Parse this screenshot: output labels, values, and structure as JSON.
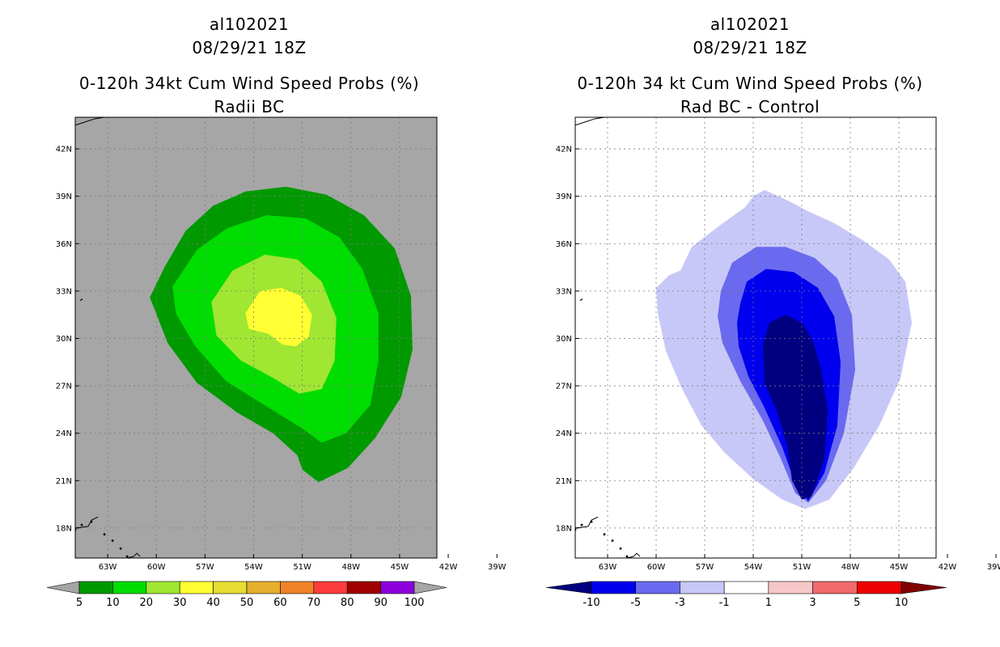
{
  "chart_data": [
    {
      "type": "filled-contour-map",
      "title_lines": [
        "al102021",
        "08/29/21 18Z",
        "0-120h 34kt Cum Wind Speed Probs (%)",
        "Radii BC"
      ],
      "x_ticks": [
        "63W",
        "60W",
        "57W",
        "54W",
        "51W",
        "48W",
        "45W",
        "42W",
        "39W"
      ],
      "y_ticks": [
        "18N",
        "21N",
        "24N",
        "27N",
        "30N",
        "33N",
        "36N",
        "39N",
        "42N"
      ],
      "xlim": [
        -65.0,
        -42.7
      ],
      "ylim": [
        16.1,
        44.0
      ],
      "grid": true,
      "background_color": "#a6a6a6",
      "colorbar": {
        "labels": [
          "5",
          "10",
          "20",
          "30",
          "40",
          "50",
          "60",
          "70",
          "80",
          "90",
          "100"
        ],
        "colors": [
          "#009900",
          "#00dd00",
          "#a0e632",
          "#ffff33",
          "#e6dc32",
          "#e6af2d",
          "#f08228",
          "#fa3c3c",
          "#a00000",
          "#8c00dc"
        ],
        "low_color": "#a6a6a6",
        "high_color": "#a6a6a6"
      },
      "contours": [
        {
          "level": "5-10",
          "color": "#009900",
          "points": [
            [
              -59.5,
              34.5
            ],
            [
              -58.2,
              36.8
            ],
            [
              -56.5,
              38.4
            ],
            [
              -54.5,
              39.3
            ],
            [
              -52.0,
              39.6
            ],
            [
              -49.5,
              39.1
            ],
            [
              -47.2,
              37.8
            ],
            [
              -45.3,
              35.7
            ],
            [
              -44.3,
              32.7
            ],
            [
              -44.2,
              29.3
            ],
            [
              -44.9,
              26.3
            ],
            [
              -46.5,
              23.7
            ],
            [
              -48.2,
              21.8
            ],
            [
              -50.0,
              20.9
            ],
            [
              -51.0,
              21.7
            ],
            [
              -51.3,
              22.6
            ],
            [
              -52.8,
              24.0
            ],
            [
              -55.0,
              25.3
            ],
            [
              -57.5,
              27.2
            ],
            [
              -59.3,
              29.7
            ],
            [
              -60.4,
              32.6
            ]
          ]
        },
        {
          "level": "10-20",
          "color": "#00dd00",
          "points": [
            [
              -59.0,
              33.3
            ],
            [
              -57.5,
              35.6
            ],
            [
              -55.6,
              37.0
            ],
            [
              -53.2,
              37.8
            ],
            [
              -50.8,
              37.6
            ],
            [
              -48.7,
              36.4
            ],
            [
              -47.3,
              34.4
            ],
            [
              -46.3,
              31.6
            ],
            [
              -46.3,
              28.6
            ],
            [
              -46.8,
              25.8
            ],
            [
              -48.3,
              24.0
            ],
            [
              -49.8,
              23.4
            ],
            [
              -51.0,
              24.3
            ],
            [
              -53.2,
              25.7
            ],
            [
              -55.7,
              27.3
            ],
            [
              -57.6,
              29.5
            ],
            [
              -58.8,
              31.6
            ]
          ]
        },
        {
          "level": "20-30",
          "color": "#a0e632",
          "points": [
            [
              -56.6,
              32.3
            ],
            [
              -55.3,
              34.3
            ],
            [
              -53.3,
              35.3
            ],
            [
              -51.3,
              35.0
            ],
            [
              -49.8,
              33.6
            ],
            [
              -48.9,
              31.3
            ],
            [
              -49.0,
              28.6
            ],
            [
              -49.8,
              26.8
            ],
            [
              -51.2,
              26.5
            ],
            [
              -52.8,
              27.5
            ],
            [
              -54.8,
              28.6
            ],
            [
              -56.3,
              30.2
            ]
          ]
        },
        {
          "level": "30-40",
          "color": "#ffff33",
          "points": [
            [
              -54.5,
              31.6
            ],
            [
              -53.6,
              33.0
            ],
            [
              -52.3,
              33.2
            ],
            [
              -51.1,
              32.7
            ],
            [
              -50.4,
              31.5
            ],
            [
              -50.6,
              30.1
            ],
            [
              -51.4,
              29.5
            ],
            [
              -52.2,
              29.6
            ],
            [
              -53.1,
              30.3
            ],
            [
              -54.3,
              30.6
            ]
          ]
        }
      ],
      "coastlines": [
        "northwest-corner",
        "bermuda",
        "lesser-antilles"
      ]
    },
    {
      "type": "filled-contour-map",
      "title_lines": [
        "al102021",
        "08/29/21 18Z",
        "0-120h 34 kt Cum Wind Speed Probs (%)",
        "Rad BC - Control"
      ],
      "x_ticks": [
        "63W",
        "60W",
        "57W",
        "54W",
        "51W",
        "48W",
        "45W",
        "42W",
        "39W"
      ],
      "y_ticks": [
        "18N",
        "21N",
        "24N",
        "27N",
        "30N",
        "33N",
        "36N",
        "39N",
        "42N"
      ],
      "xlim": [
        -65.0,
        -42.7
      ],
      "ylim": [
        16.1,
        44.0
      ],
      "grid": true,
      "background_color": "#ffffff",
      "colorbar": {
        "labels": [
          "-10",
          "-5",
          "-3",
          "-1",
          "1",
          "3",
          "5",
          "10"
        ],
        "colors": [
          "#0000ee",
          "#6a6af0",
          "#c8c8f8",
          "#ffffff",
          "#f8c8c8",
          "#f06a6a",
          "#ee0000"
        ],
        "low_color": "#000080",
        "high_color": "#800000"
      },
      "contours": [
        {
          "level": "-3 to -1",
          "color": "#c8c8f8",
          "points": [
            [
              -58.5,
              34.3
            ],
            [
              -57.8,
              35.8
            ],
            [
              -56.0,
              37.2
            ],
            [
              -54.5,
              38.3
            ],
            [
              -54.0,
              39.0
            ],
            [
              -53.3,
              39.4
            ],
            [
              -52.0,
              38.8
            ],
            [
              -50.5,
              38.0
            ],
            [
              -49.0,
              37.3
            ],
            [
              -47.2,
              36.2
            ],
            [
              -45.6,
              35.0
            ],
            [
              -44.6,
              33.6
            ],
            [
              -44.2,
              31.0
            ],
            [
              -44.9,
              27.5
            ],
            [
              -46.2,
              24.5
            ],
            [
              -47.8,
              21.8
            ],
            [
              -49.3,
              19.8
            ],
            [
              -50.8,
              19.2
            ],
            [
              -52.2,
              19.8
            ],
            [
              -54.0,
              21.1
            ],
            [
              -55.8,
              22.8
            ],
            [
              -57.2,
              24.5
            ],
            [
              -58.4,
              26.8
            ],
            [
              -59.4,
              29.2
            ],
            [
              -59.9,
              31.6
            ],
            [
              -60.0,
              33.2
            ],
            [
              -59.2,
              34.0
            ]
          ]
        },
        {
          "level": "-5 to -3",
          "color": "#6a6af0",
          "points": [
            [
              -56.0,
              33.0
            ],
            [
              -55.3,
              34.8
            ],
            [
              -53.8,
              35.8
            ],
            [
              -52.0,
              35.8
            ],
            [
              -50.2,
              35.1
            ],
            [
              -48.8,
              33.8
            ],
            [
              -47.9,
              31.5
            ],
            [
              -47.7,
              28.0
            ],
            [
              -48.4,
              24.0
            ],
            [
              -49.5,
              21.0
            ],
            [
              -50.6,
              19.6
            ],
            [
              -51.4,
              20.2
            ],
            [
              -52.3,
              22.4
            ],
            [
              -53.4,
              24.8
            ],
            [
              -54.8,
              27.3
            ],
            [
              -55.9,
              29.7
            ],
            [
              -56.2,
              31.4
            ]
          ]
        },
        {
          "level": "-10 to -5",
          "color": "#0000ee",
          "points": [
            [
              -54.8,
              32.2
            ],
            [
              -54.4,
              33.6
            ],
            [
              -53.2,
              34.4
            ],
            [
              -51.5,
              34.2
            ],
            [
              -50.0,
              33.2
            ],
            [
              -49.0,
              31.4
            ],
            [
              -48.6,
              28.5
            ],
            [
              -48.8,
              24.5
            ],
            [
              -49.6,
              21.5
            ],
            [
              -50.6,
              19.7
            ],
            [
              -51.4,
              20.8
            ],
            [
              -52.2,
              23.1
            ],
            [
              -53.3,
              25.6
            ],
            [
              -54.3,
              27.6
            ],
            [
              -54.9,
              29.5
            ],
            [
              -55.0,
              31.0
            ]
          ]
        },
        {
          "level": "below -10",
          "color": "#000080",
          "points": [
            [
              -53.4,
              29.6
            ],
            [
              -53.0,
              31.0
            ],
            [
              -52.0,
              31.5
            ],
            [
              -51.0,
              31.0
            ],
            [
              -50.3,
              29.8
            ],
            [
              -49.8,
              28.0
            ],
            [
              -49.4,
              25.5
            ],
            [
              -49.6,
              22.4
            ],
            [
              -50.4,
              20.0
            ],
            [
              -51.0,
              19.8
            ],
            [
              -51.6,
              21.0
            ],
            [
              -51.9,
              23.2
            ],
            [
              -52.5,
              25.3
            ],
            [
              -53.3,
              27.2
            ]
          ]
        }
      ],
      "coastlines": [
        "northwest-corner",
        "bermuda",
        "lesser-antilles"
      ]
    }
  ]
}
